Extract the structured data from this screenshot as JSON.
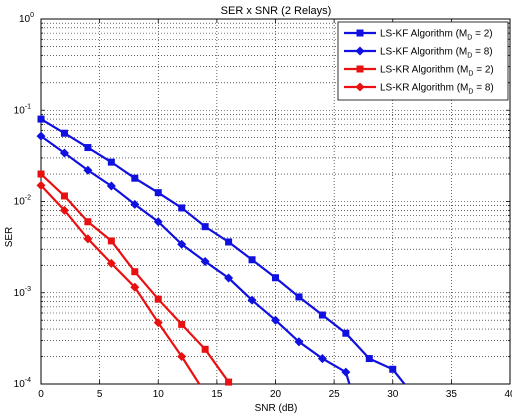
{
  "chart_data": {
    "type": "line",
    "title": "SER x SNR (2 Relays)",
    "xlabel": "SNR (dB)",
    "ylabel": "SER",
    "xlim": [
      0,
      40
    ],
    "ylim": [
      0.0001,
      1
    ],
    "yscale": "log",
    "grid": true,
    "legend_position": "top-right",
    "x_ticks": [
      "0",
      "5",
      "10",
      "15",
      "20",
      "25",
      "30",
      "35",
      "40"
    ],
    "y_ticks": [
      {
        "base": "10",
        "exp": "0"
      },
      {
        "base": "10",
        "exp": "-1"
      },
      {
        "base": "10",
        "exp": "-2"
      },
      {
        "base": "10",
        "exp": "-3"
      },
      {
        "base": "10",
        "exp": "-4"
      }
    ],
    "series": [
      {
        "name": "LS-KF Algorithm (M",
        "name_sub": "D",
        "name_tail": " = 2)",
        "color": "#1010e0",
        "marker": "square",
        "x": [
          0,
          2,
          4,
          6,
          8,
          10,
          12,
          14,
          16,
          18,
          20,
          22,
          24,
          26,
          28,
          30,
          31
        ],
        "y": [
          0.08,
          0.056,
          0.039,
          0.027,
          0.018,
          0.0125,
          0.0085,
          0.0053,
          0.0036,
          0.0023,
          0.00146,
          0.0009,
          0.00057,
          0.00036,
          0.00019,
          0.000145,
          0.0001
        ]
      },
      {
        "name": "LS-KF Algorithm (M",
        "name_sub": "D",
        "name_tail": " = 8)",
        "color": "#1010e0",
        "marker": "diamond",
        "x": [
          0,
          2,
          4,
          6,
          8,
          10,
          12,
          14,
          16,
          18,
          20,
          22,
          24,
          26,
          26.3
        ],
        "y": [
          0.052,
          0.034,
          0.022,
          0.0148,
          0.0093,
          0.006,
          0.0034,
          0.0022,
          0.00145,
          0.00083,
          0.0005,
          0.00029,
          0.00019,
          0.000135,
          0.0001
        ]
      },
      {
        "name": "LS-KR Algorithm (M",
        "name_sub": "D",
        "name_tail": " = 2)",
        "color": "#e81010",
        "marker": "square",
        "x": [
          0,
          2,
          4,
          6,
          8,
          10,
          12,
          14,
          16
        ],
        "y": [
          0.02,
          0.0115,
          0.006,
          0.0037,
          0.0017,
          0.00085,
          0.00045,
          0.00024,
          0.000105
        ]
      },
      {
        "name": "LS-KR Algorithm (M",
        "name_sub": "D",
        "name_tail": " = 8)",
        "color": "#e81010",
        "marker": "diamond",
        "x": [
          0,
          2,
          4,
          6,
          8,
          10,
          12,
          13.5
        ],
        "y": [
          0.015,
          0.008,
          0.0039,
          0.0021,
          0.00115,
          0.00047,
          0.0002,
          0.0001
        ]
      }
    ]
  }
}
